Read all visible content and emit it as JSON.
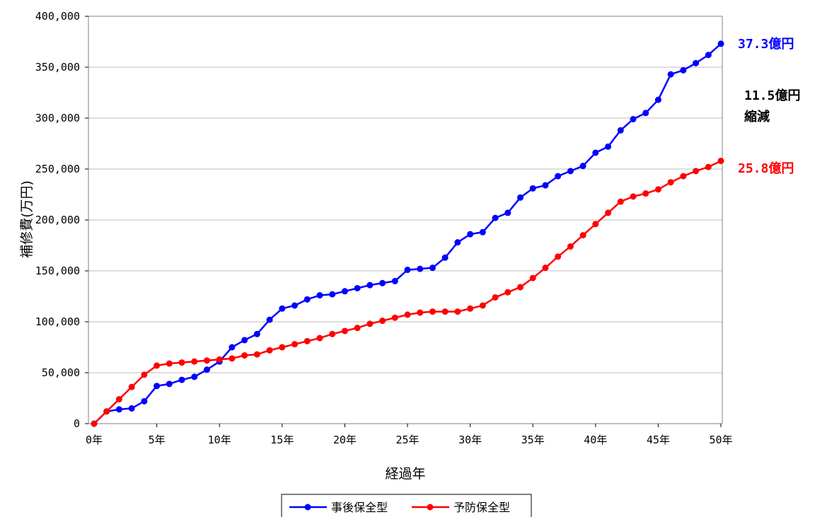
{
  "chart_data": {
    "type": "line",
    "title": "",
    "xlabel": "経過年",
    "ylabel": "補修費(万円)",
    "x": [
      0,
      1,
      2,
      3,
      4,
      5,
      6,
      7,
      8,
      9,
      10,
      11,
      12,
      13,
      14,
      15,
      16,
      17,
      18,
      19,
      20,
      21,
      22,
      23,
      24,
      25,
      26,
      27,
      28,
      29,
      30,
      31,
      32,
      33,
      34,
      35,
      36,
      37,
      38,
      39,
      40,
      41,
      42,
      43,
      44,
      45,
      46,
      47,
      48,
      49,
      50
    ],
    "xlim": [
      0,
      50
    ],
    "ylim": [
      0,
      400000
    ],
    "x_ticks": [
      0,
      5,
      10,
      15,
      20,
      25,
      30,
      35,
      40,
      45,
      50
    ],
    "x_tick_labels": [
      "0年",
      "5年",
      "10年",
      "15年",
      "20年",
      "25年",
      "30年",
      "35年",
      "40年",
      "45年",
      "50年"
    ],
    "y_ticks": [
      0,
      50000,
      100000,
      150000,
      200000,
      250000,
      300000,
      350000,
      400000
    ],
    "y_tick_labels": [
      "0",
      "50,000",
      "100,000",
      "150,000",
      "200,000",
      "250,000",
      "300,000",
      "350,000",
      "400,000"
    ],
    "grid": "horizontal",
    "legend_position": "bottom",
    "series": [
      {
        "name": "事後保全型",
        "color": "#0000ff",
        "values": [
          0,
          12000,
          14000,
          15000,
          22000,
          37000,
          39000,
          43000,
          46000,
          53000,
          61000,
          75000,
          82000,
          88000,
          102000,
          113000,
          116000,
          122000,
          126000,
          127000,
          130000,
          133000,
          136000,
          138000,
          140000,
          151000,
          152000,
          153000,
          163000,
          178000,
          186000,
          188000,
          202000,
          207000,
          222000,
          231000,
          234000,
          243000,
          248000,
          253000,
          266000,
          272000,
          288000,
          299000,
          305000,
          318000,
          343000,
          347000,
          354000,
          362000,
          373000
        ]
      },
      {
        "name": "予防保全型",
        "color": "#ff0000",
        "values": [
          0,
          12000,
          24000,
          36000,
          48000,
          57000,
          59000,
          60000,
          61000,
          62000,
          63000,
          64000,
          67000,
          68000,
          72000,
          75000,
          78000,
          81000,
          84000,
          88000,
          91000,
          94000,
          98000,
          101000,
          104000,
          107000,
          109000,
          110000,
          110000,
          110000,
          113000,
          116000,
          124000,
          129000,
          134000,
          143000,
          153000,
          164000,
          174000,
          185000,
          196000,
          207000,
          218000,
          223000,
          226000,
          230000,
          237000,
          243000,
          248000,
          252000,
          258000
        ]
      }
    ],
    "annotations": {
      "blue_total": "37.3億円",
      "diff_line1": "11.5億円",
      "diff_line2": "縮減",
      "red_total": "25.8億円"
    }
  }
}
